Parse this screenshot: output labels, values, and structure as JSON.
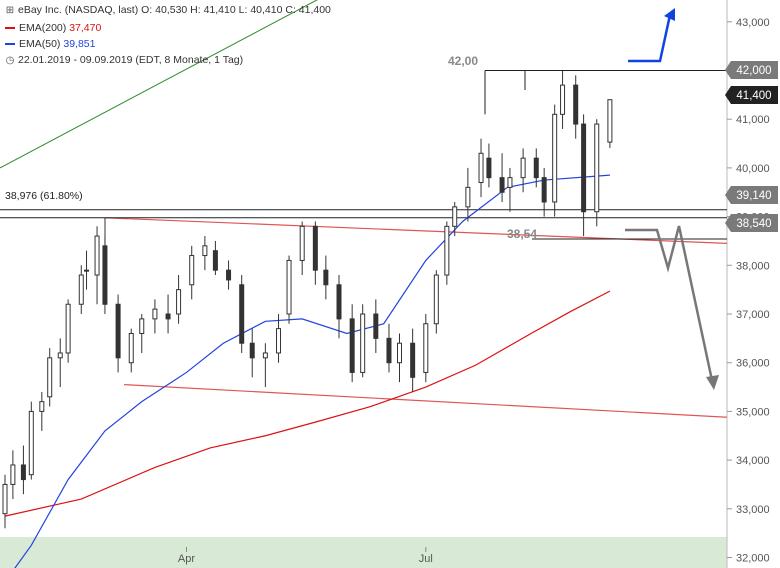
{
  "header": {
    "title": "eBay Inc. (NASDAQ, last)",
    "open": "O: 40,530",
    "high": "H: 41,410",
    "low": "L: 40,410",
    "close": "C: 41,400",
    "ema200_label": "EMA(200)",
    "ema200_value": "37,470",
    "ema50_label": "EMA(50)",
    "ema50_value": "39,851",
    "period": "22.01.2019 - 09.09.2019",
    "period_note": "(EDT, 8 Monate, 1 Tag)",
    "icon": "clock-icon"
  },
  "colors": {
    "candle": "#333333",
    "ema200": "#dd1111",
    "ema50": "#2244dd",
    "support_channel": "#e05555",
    "uptrend": "#2a8a2a",
    "level_line": "#222222",
    "arrow_up": "#1144dd",
    "arrow_down": "#777777",
    "tag_grey": "#7a7a7a",
    "tag_dark": "#222222",
    "bottom_band": "#d8ead6"
  },
  "chart_data": {
    "type": "candlestick",
    "x_labels": [
      "Apr",
      "Jul"
    ],
    "y_ticks": [
      "32,000",
      "33,000",
      "34,000",
      "35,000",
      "36,000",
      "37,000",
      "38,000",
      "39,000",
      "40,000",
      "41,000",
      "42,000",
      "43,000"
    ],
    "ylim": [
      32.0,
      43.5
    ],
    "xlim": [
      "2019-01-22",
      "2019-10-28"
    ],
    "series": [
      {
        "name": "EMA(200)",
        "last": 37.47,
        "points": [
          [
            "2019-01-22",
            32.85
          ],
          [
            "2019-02-20",
            33.2
          ],
          [
            "2019-03-20",
            33.85
          ],
          [
            "2019-04-10",
            34.25
          ],
          [
            "2019-05-01",
            34.5
          ],
          [
            "2019-05-20",
            34.78
          ],
          [
            "2019-06-10",
            35.1
          ],
          [
            "2019-07-01",
            35.5
          ],
          [
            "2019-07-20",
            35.95
          ],
          [
            "2019-08-10",
            36.6
          ],
          [
            "2019-08-25",
            37.05
          ],
          [
            "2019-09-09",
            37.47
          ]
        ]
      },
      {
        "name": "EMA(50)",
        "last": 39.851,
        "points": [
          [
            "2019-01-22",
            31.5
          ],
          [
            "2019-02-01",
            32.25
          ],
          [
            "2019-02-15",
            33.6
          ],
          [
            "2019-03-01",
            34.6
          ],
          [
            "2019-03-15",
            35.2
          ],
          [
            "2019-04-01",
            35.8
          ],
          [
            "2019-04-15",
            36.4
          ],
          [
            "2019-05-01",
            36.85
          ],
          [
            "2019-05-15",
            36.9
          ],
          [
            "2019-06-01",
            36.6
          ],
          [
            "2019-06-15",
            36.8
          ],
          [
            "2019-07-01",
            38.1
          ],
          [
            "2019-07-15",
            38.9
          ],
          [
            "2019-08-01",
            39.6
          ],
          [
            "2019-08-15",
            39.75
          ],
          [
            "2019-09-09",
            39.851
          ]
        ]
      }
    ],
    "candles_ohlc": [
      [
        "2019-01-22",
        32.9,
        33.7,
        32.6,
        33.5
      ],
      [
        "2019-01-25",
        33.5,
        34.2,
        33.2,
        33.9
      ],
      [
        "2019-01-29",
        33.9,
        34.3,
        33.3,
        33.6
      ],
      [
        "2019-02-01",
        33.7,
        35.2,
        33.6,
        35.0
      ],
      [
        "2019-02-05",
        35.0,
        35.4,
        34.6,
        35.2
      ],
      [
        "2019-02-08",
        35.3,
        36.3,
        35.1,
        36.1
      ],
      [
        "2019-02-12",
        36.1,
        36.5,
        35.5,
        36.2
      ],
      [
        "2019-02-15",
        36.2,
        37.3,
        36.0,
        37.2
      ],
      [
        "2019-02-20",
        37.2,
        38.0,
        37.0,
        37.8
      ],
      [
        "2019-02-22",
        37.9,
        38.3,
        37.5,
        37.9
      ],
      [
        "2019-02-26",
        37.8,
        38.8,
        37.2,
        38.6
      ],
      [
        "2019-03-01",
        38.4,
        38.6,
        37.0,
        37.2
      ],
      [
        "2019-03-06",
        37.2,
        37.4,
        35.8,
        36.1
      ],
      [
        "2019-03-11",
        36.0,
        36.7,
        35.8,
        36.6
      ],
      [
        "2019-03-15",
        36.6,
        37.0,
        36.2,
        36.9
      ],
      [
        "2019-03-20",
        36.9,
        37.3,
        36.6,
        37.1
      ],
      [
        "2019-03-25",
        37.0,
        37.4,
        36.6,
        36.9
      ],
      [
        "2019-03-29",
        37.0,
        37.8,
        36.8,
        37.5
      ],
      [
        "2019-04-03",
        37.6,
        38.4,
        37.3,
        38.2
      ],
      [
        "2019-04-08",
        38.2,
        38.6,
        37.9,
        38.4
      ],
      [
        "2019-04-12",
        38.3,
        38.5,
        37.8,
        37.9
      ],
      [
        "2019-04-17",
        37.9,
        38.1,
        37.5,
        37.7
      ],
      [
        "2019-04-22",
        37.6,
        37.8,
        36.2,
        36.4
      ],
      [
        "2019-04-26",
        36.4,
        36.7,
        35.7,
        36.1
      ],
      [
        "2019-05-01",
        36.1,
        36.4,
        35.5,
        36.2
      ],
      [
        "2019-05-06",
        36.2,
        37.0,
        36.0,
        36.7
      ],
      [
        "2019-05-10",
        37.0,
        38.2,
        36.8,
        38.1
      ],
      [
        "2019-05-15",
        38.1,
        38.9,
        37.8,
        38.8
      ],
      [
        "2019-05-20",
        38.8,
        38.9,
        37.6,
        37.9
      ],
      [
        "2019-05-24",
        37.9,
        38.2,
        37.3,
        37.6
      ],
      [
        "2019-05-29",
        37.6,
        37.8,
        36.5,
        36.9
      ],
      [
        "2019-06-03",
        36.9,
        37.2,
        35.6,
        35.8
      ],
      [
        "2019-06-07",
        35.8,
        37.2,
        35.7,
        37.0
      ],
      [
        "2019-06-12",
        37.0,
        37.3,
        36.2,
        36.5
      ],
      [
        "2019-06-17",
        36.5,
        36.8,
        35.8,
        36.0
      ],
      [
        "2019-06-21",
        36.0,
        36.6,
        35.6,
        36.4
      ],
      [
        "2019-06-26",
        36.4,
        36.7,
        35.4,
        35.7
      ],
      [
        "2019-07-01",
        35.8,
        37.0,
        35.6,
        36.8
      ],
      [
        "2019-07-05",
        36.8,
        37.9,
        36.6,
        37.8
      ],
      [
        "2019-07-09",
        37.8,
        38.9,
        37.6,
        38.8
      ],
      [
        "2019-07-12",
        38.8,
        39.3,
        38.6,
        39.2
      ],
      [
        "2019-07-17",
        39.2,
        40.0,
        38.9,
        39.6
      ],
      [
        "2019-07-22",
        39.7,
        40.6,
        39.4,
        40.3
      ],
      [
        "2019-07-25",
        40.2,
        40.5,
        39.6,
        39.8
      ],
      [
        "2019-07-30",
        39.8,
        40.3,
        39.3,
        39.5
      ],
      [
        "2019-08-02",
        39.6,
        40.0,
        39.1,
        39.8
      ],
      [
        "2019-08-07",
        39.8,
        40.4,
        39.5,
        40.2
      ],
      [
        "2019-08-12",
        40.2,
        40.4,
        39.6,
        39.8
      ],
      [
        "2019-08-15",
        39.8,
        40.0,
        39.0,
        39.3
      ],
      [
        "2019-08-19",
        39.3,
        41.3,
        39.0,
        41.1
      ],
      [
        "2019-08-22",
        41.1,
        42.0,
        40.8,
        41.7
      ],
      [
        "2019-08-27",
        41.7,
        41.9,
        40.6,
        40.9
      ],
      [
        "2019-08-30",
        40.9,
        41.1,
        38.6,
        39.1
      ],
      [
        "2019-09-04",
        39.1,
        41.0,
        38.8,
        40.9
      ],
      [
        "2019-09-09",
        40.53,
        41.41,
        40.41,
        41.4
      ]
    ]
  },
  "annotations": {
    "high_label": "42,00",
    "low_label": "38,54",
    "fib_label": "38,976 (61.80%)",
    "tag_42": "42,000",
    "tag_last": "41,400",
    "tag_3914": "39,140",
    "tag_3854": "38,540"
  }
}
